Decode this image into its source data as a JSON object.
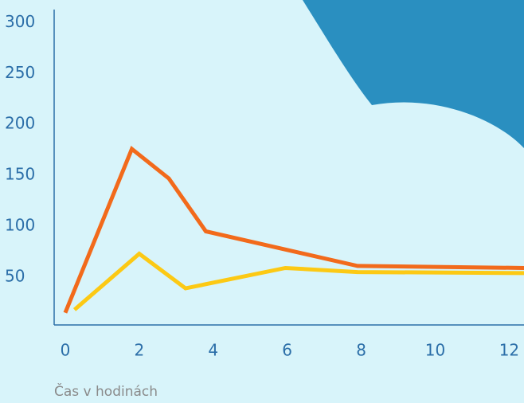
{
  "chart_data": {
    "type": "line",
    "x_label": "Čas v hodinách",
    "series": [
      {
        "color": "#f26a1b",
        "x": [
          0,
          1.8,
          2.8,
          3.8,
          7.9,
          12.4
        ],
        "values": [
          18,
          179,
          150,
          98,
          64,
          62
        ]
      },
      {
        "color": "#fcc914",
        "x": [
          0.25,
          2.0,
          3.25,
          5.95,
          7.9,
          12.4
        ],
        "values": [
          21,
          76,
          42,
          62,
          58,
          57
        ]
      }
    ],
    "xlim": [
      -0.3,
      12.4
    ],
    "xticks": [
      0,
      2,
      4,
      6,
      8,
      10,
      12
    ],
    "ylim": [
      6,
      316
    ],
    "yticks": [
      50,
      100,
      150,
      200,
      250,
      300
    ]
  }
}
